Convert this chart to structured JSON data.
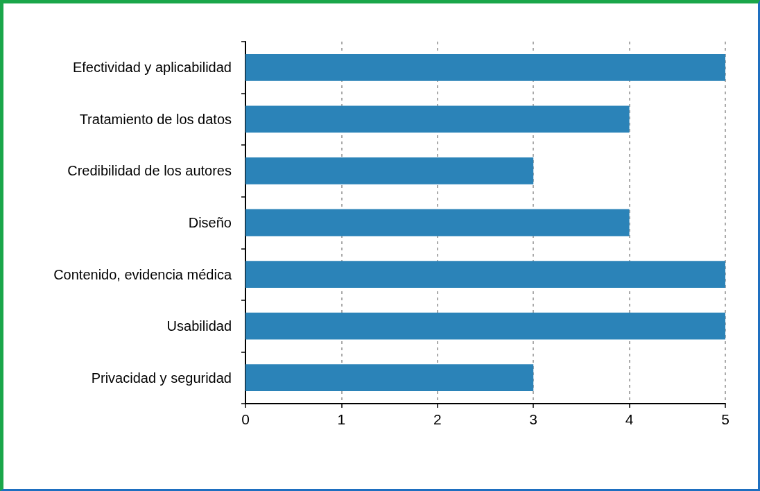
{
  "chart_data": {
    "type": "bar",
    "orientation": "horizontal",
    "categories": [
      "Efectividad y aplicabilidad",
      "Tratamiento de los datos",
      "Credibilidad de los autores",
      "Diseño",
      "Contenido, evidencia médica",
      "Usabilidad",
      "Privacidad y seguridad"
    ],
    "values": [
      5,
      4,
      3,
      4,
      5,
      5,
      3
    ],
    "color": "#2b83b8",
    "xlim": [
      0,
      5
    ],
    "xticks": [
      0,
      1,
      2,
      3,
      4,
      5
    ],
    "grid": "x"
  }
}
